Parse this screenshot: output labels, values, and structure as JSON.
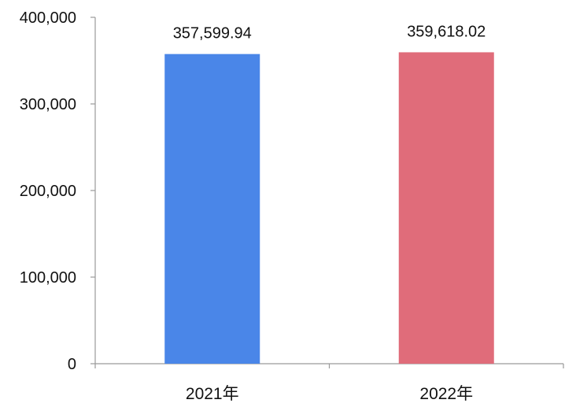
{
  "chart_data": {
    "type": "bar",
    "title": "",
    "xlabel": "",
    "ylabel": "",
    "categories": [
      "2021年",
      "2022年"
    ],
    "values": [
      357599.94,
      359618.02
    ],
    "data_labels": [
      "357,599.94",
      "359,618.02"
    ],
    "bar_colors": [
      "#4a86e8",
      "#e06c7a"
    ],
    "ylim": [
      0,
      400000
    ],
    "y_ticks": [
      0,
      100000,
      200000,
      300000,
      400000
    ],
    "y_tick_labels": [
      "0",
      "100,000",
      "200,000",
      "300,000",
      "400,000"
    ],
    "grid": false,
    "legend": "none"
  }
}
